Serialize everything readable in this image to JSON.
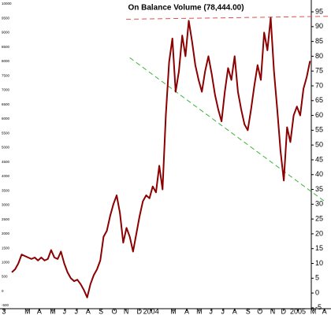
{
  "chart_data": {
    "type": "line",
    "title": "On Balance Volume (78,444.00)",
    "unit_label": "x1000",
    "series": [
      {
        "color": "#8b0000",
        "values": [
          7,
          8,
          10,
          13,
          12.5,
          12,
          11.5,
          12,
          11,
          12,
          11,
          11.5,
          14.5,
          12,
          11.5,
          14,
          10,
          7,
          5,
          4,
          4.5,
          3,
          1,
          -1.5,
          3,
          6,
          8,
          11,
          19,
          21,
          26,
          30,
          33,
          27,
          17,
          22,
          19,
          14,
          20,
          26,
          31,
          33,
          32,
          36,
          34,
          43,
          35,
          60,
          78,
          86,
          68,
          75,
          87,
          80,
          92,
          85,
          77,
          72,
          68,
          75,
          80,
          74,
          67,
          62,
          58,
          68,
          76,
          72,
          80,
          68,
          62,
          57,
          55,
          62,
          70,
          77,
          72,
          88,
          82,
          93,
          75,
          62,
          48,
          38,
          56,
          51,
          60,
          63,
          60,
          69,
          73,
          78.4
        ]
      }
    ],
    "trendlines": [
      {
        "color": "#e05050",
        "x": [
          34.9,
          97.4
        ],
        "values": [
          92.5,
          93.5
        ]
      },
      {
        "color": "#40b040",
        "x": [
          36,
          95.4
        ],
        "values": [
          79.5,
          31
        ]
      }
    ],
    "xlim": [
      -3.6,
      97.4
    ],
    "xticks": [
      {
        "value": -2.4,
        "label": "3"
      },
      {
        "value": 4.8,
        "label": "M"
      },
      {
        "value": 8.4,
        "label": "A"
      },
      {
        "value": 12.5,
        "label": "M"
      },
      {
        "value": 16.1,
        "label": "J"
      },
      {
        "value": 19.7,
        "label": "J"
      },
      {
        "value": 23.3,
        "label": "A"
      },
      {
        "value": 27.2,
        "label": "S"
      },
      {
        "value": 31.3,
        "label": "O"
      },
      {
        "value": 34.9,
        "label": "N"
      },
      {
        "value": 38.9,
        "label": "D"
      },
      {
        "value": 42.5,
        "label": "2004"
      },
      {
        "value": 49.3,
        "label": "M"
      },
      {
        "value": 53.4,
        "label": "A"
      },
      {
        "value": 57.2,
        "label": "M"
      },
      {
        "value": 60.8,
        "label": "J"
      },
      {
        "value": 64.4,
        "label": "J"
      },
      {
        "value": 68,
        "label": "A"
      },
      {
        "value": 72.1,
        "label": "S"
      },
      {
        "value": 75.7,
        "label": "O"
      },
      {
        "value": 79.6,
        "label": "N"
      },
      {
        "value": 82.9,
        "label": "D"
      },
      {
        "value": 87.3,
        "label": "2005"
      },
      {
        "value": 92,
        "label": "M"
      },
      {
        "value": 95.4,
        "label": "A"
      }
    ],
    "ylim": [
      -5.3,
      99
    ],
    "yticks": [
      95,
      90,
      85,
      80,
      75,
      70,
      65,
      60,
      55,
      50,
      45,
      40,
      35,
      30,
      25,
      20,
      15,
      10,
      5,
      0,
      -5
    ],
    "y2lim": [
      -609,
      10137
    ],
    "y2ticks": [
      10000,
      9500,
      9000,
      8500,
      8000,
      7500,
      7000,
      6500,
      6000,
      5500,
      5000,
      4500,
      4000,
      3500,
      3000,
      2500,
      2000,
      1500,
      1000,
      500,
      0,
      -500
    ]
  }
}
